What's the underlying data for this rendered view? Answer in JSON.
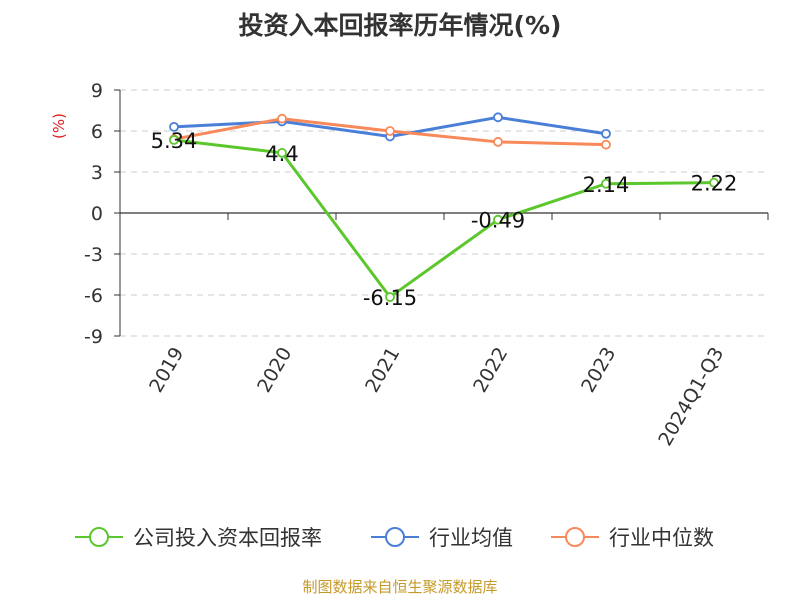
{
  "chart_data": {
    "type": "line",
    "title": "投资入本回报率历年情况(%)",
    "ylabel": "(%)",
    "xlabel": "",
    "categories": [
      "2019",
      "2020",
      "2021",
      "2022",
      "2023",
      "2024Q1-Q3"
    ],
    "ylim": [
      -9,
      9
    ],
    "yticks": [
      9,
      6,
      3,
      0,
      -3,
      -6,
      -9
    ],
    "grid": true,
    "legend_position": "bottom",
    "series": [
      {
        "name": "公司投入资本回报率",
        "color": "#5cc72d",
        "values": [
          5.34,
          4.4,
          -6.15,
          -0.49,
          2.14,
          2.22
        ],
        "labels": [
          "5.34",
          "4.4",
          "-6.15",
          "-0.49",
          "2.14",
          "2.22"
        ]
      },
      {
        "name": "行业均值",
        "color": "#4a7fd8",
        "values": [
          6.3,
          6.7,
          5.6,
          7.0,
          5.8,
          null
        ]
      },
      {
        "name": "行业中位数",
        "color": "#f7895a",
        "values": [
          5.4,
          6.9,
          6.0,
          5.2,
          5.0,
          null
        ]
      }
    ]
  },
  "source": "制图数据来自恒生聚源数据库"
}
